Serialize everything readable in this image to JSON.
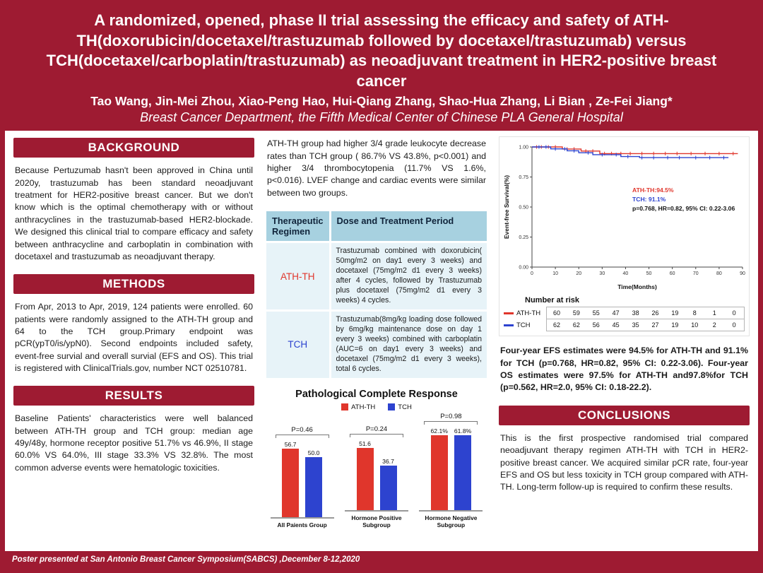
{
  "poster": {
    "title": "A randomized, opened, phase II trial assessing the efficacy and safety of ATH-TH(doxorubicin/docetaxel/trastuzumab followed by docetaxel/trastuzumab) versus TCH(docetaxel/carboplatin/trastuzumab) as neoadjuvant treatment in HER2-positive breast cancer",
    "authors": "Tao Wang, Jin-Mei Zhou, Xiao-Peng Hao, Hui-Qiang Zhang, Shao-Hua Zhang, Li Bian , Ze-Fei Jiang*",
    "affiliation": "Breast Cancer Department, the Fifth Medical Center of Chinese PLA General Hospital",
    "footer": "Poster  presented  at  San Antonio Breast Cancer Symposium(SABCS) ,December 8-12,2020"
  },
  "colors": {
    "maroon": "#9e1b32",
    "ath_red": "#e0362c",
    "tch_blue": "#2d43cf",
    "table_header_bg": "#a7d1e0",
    "table_row_bg": "#e7f3f8"
  },
  "sections": {
    "background": {
      "heading": "BACKGROUND",
      "body": "Because Pertuzumab hasn't been approved in China until 2020y, trastuzumab has been standard neoadjuvant treatment for HER2-positive breast cancer. But we don't know which is the optimal chemotherapy with or without anthracyclines in the trastuzumab-based HER2-blockade. We designed this clinical trial to compare efficacy and safety between anthracycline and carboplatin in combination with docetaxel and trastuzumab as neoadjuvant therapy."
    },
    "methods": {
      "heading": "METHODS",
      "body": "From Apr, 2013 to Apr, 2019, 124 patients were enrolled. 60 patients were randomly assigned to the ATH-TH group and 64 to the TCH group.Primary endpoint was pCR(ypT0/is/ypN0). Second endpoints included safety, event-free survial and overall survial (EFS and OS). This trial is registered with ClinicalTrials.gov, number NCT 02510781."
    },
    "results": {
      "heading": "RESULTS",
      "body": "Baseline Patients' characteristics were well balanced between ATH-TH group and TCH group: median age 49y/48y, hormone receptor positive 51.7% vs 46.9%, II stage 60.0% VS 64.0%, III stage 33.3% VS 32.8%. The most common adverse events were hematologic toxicities."
    },
    "conclusions": {
      "heading": "CONCLUSIONS",
      "body": "This is the first prospective randomised trial compared neoadjuvant therapy regimen ATH-TH with TCH in HER2-positive breast cancer. We acquired similar pCR rate, four-year EFS and OS but less toxicity in TCH group compared with ATH-TH. Long-term follow-up is required to confirm these results."
    }
  },
  "middle": {
    "toxicity_text": "ATH-TH group had higher 3/4 grade leukocyte decrease rates than TCH group ( 86.7% VS 43.8%, p<0.001) and higher 3/4 thrombocytopenia (11.7% VS 1.6%, p<0.016). LVEF change and cardiac events were similar between two groups.",
    "regimen_table": {
      "headers": [
        "Therapeutic Regimen",
        "Dose and Treatment Period"
      ],
      "rows": [
        {
          "regimen": "ATH-TH",
          "description": "Trastuzumab combined with doxorubicin( 50mg/m2 on day1 every 3 weeks) and docetaxel (75mg/m2 d1 every 3 weeks) after 4 cycles, followed by Trastuzumab plus docetaxel (75mg/m2 d1 every 3 weeks) 4 cycles."
        },
        {
          "regimen": "TCH",
          "description": "Trastuzumab(8mg/kg loading dose followed by 6mg/kg maintenance dose on day 1 every 3 weeks) combined with carboplatin (AUC=6 on day1 every 3 weeks) and docetaxel (75mg/m2 d1 every 3 weeks), total 6 cycles."
        }
      ]
    }
  },
  "right": {
    "efs_text": "Four-year EFS estimates were 94.5% for ATH-TH and 91.1% for TCH (p=0.768, HR=0.82, 95% CI: 0.22-3.06). Four-year OS estimates were 97.5% for ATH-TH and97.8%for TCH (p=0.562, HR=2.0, 95% CI: 0.18-22.2)."
  },
  "chart_data": [
    {
      "type": "bar",
      "title": "Pathological Complete Response",
      "legend": [
        {
          "label": "ATH-TH",
          "color": "#e0362c"
        },
        {
          "label": "TCH",
          "color": "#2d43cf"
        }
      ],
      "categories": [
        "All Paients Group",
        "Hormone Positive Subgroup",
        "Hormone Negative Subgroup"
      ],
      "series": [
        {
          "name": "ATH-TH",
          "values": [
            56.7,
            51.6,
            62.1
          ]
        },
        {
          "name": "TCH",
          "values": [
            50.0,
            36.7,
            61.8
          ]
        }
      ],
      "value_labels": [
        [
          "56.7",
          "50.0"
        ],
        [
          "51.6",
          "36.7"
        ],
        [
          "62.1%",
          "61.8%"
        ]
      ],
      "p_values": [
        "P=0.46",
        "P=0.24",
        "P=0.98"
      ],
      "ylim": [
        0,
        70
      ]
    },
    {
      "type": "line",
      "title": "Event-free survival Kaplan-Meier curves",
      "ylabel": "Event-free Survival(%)",
      "xlabel": "Time(Months)",
      "xticks": [
        0,
        10,
        20,
        30,
        40,
        50,
        60,
        70,
        80,
        90
      ],
      "yticks": [
        "1.00",
        "0.75",
        "0.50",
        "0.25",
        "0.00"
      ],
      "xlim": [
        0,
        90
      ],
      "ylim": [
        0,
        1
      ],
      "series": [
        {
          "name": "ATH-TH",
          "color": "#e0362c",
          "final_estimate": "94.5%",
          "points": [
            [
              0,
              1.0
            ],
            [
              13,
              1.0
            ],
            [
              13,
              0.983
            ],
            [
              21,
              0.983
            ],
            [
              21,
              0.966
            ],
            [
              29,
              0.966
            ],
            [
              29,
              0.945
            ],
            [
              88,
              0.945
            ]
          ],
          "censor_x": [
            2,
            4,
            7,
            10,
            15,
            18,
            23,
            26,
            31,
            34,
            38,
            42,
            47,
            52,
            57,
            62,
            68,
            74,
            80,
            86
          ]
        },
        {
          "name": "TCH",
          "color": "#2d43cf",
          "final_estimate": "91.1%",
          "points": [
            [
              0,
              1.0
            ],
            [
              8,
              1.0
            ],
            [
              8,
              0.984
            ],
            [
              15,
              0.984
            ],
            [
              15,
              0.968
            ],
            [
              20,
              0.968
            ],
            [
              20,
              0.952
            ],
            [
              26,
              0.952
            ],
            [
              26,
              0.936
            ],
            [
              38,
              0.936
            ],
            [
              38,
              0.92
            ],
            [
              46,
              0.92
            ],
            [
              46,
              0.911
            ],
            [
              84,
              0.911
            ]
          ],
          "censor_x": [
            3,
            6,
            10,
            14,
            18,
            24,
            30,
            36,
            41,
            47,
            52,
            58,
            63,
            70,
            76,
            82
          ]
        }
      ],
      "annotations": [
        {
          "text": "ATH-TH:94.5%",
          "color": "#e0362c"
        },
        {
          "text": "TCH: 91.1%",
          "color": "#2d43cf"
        },
        {
          "text": "p=0.768, HR=0.82, 95% CI: 0.22-3.06",
          "color": "#111111"
        }
      ],
      "number_at_risk": {
        "label": "Number at risk",
        "rows": [
          {
            "name": "ATH-TH",
            "color": "#e0362c",
            "values": [
              60,
              59,
              55,
              47,
              38,
              26,
              19,
              8,
              1,
              0
            ]
          },
          {
            "name": "TCH",
            "color": "#2d43cf",
            "values": [
              62,
              62,
              56,
              45,
              35,
              27,
              19,
              10,
              2,
              0
            ]
          }
        ]
      }
    }
  ]
}
